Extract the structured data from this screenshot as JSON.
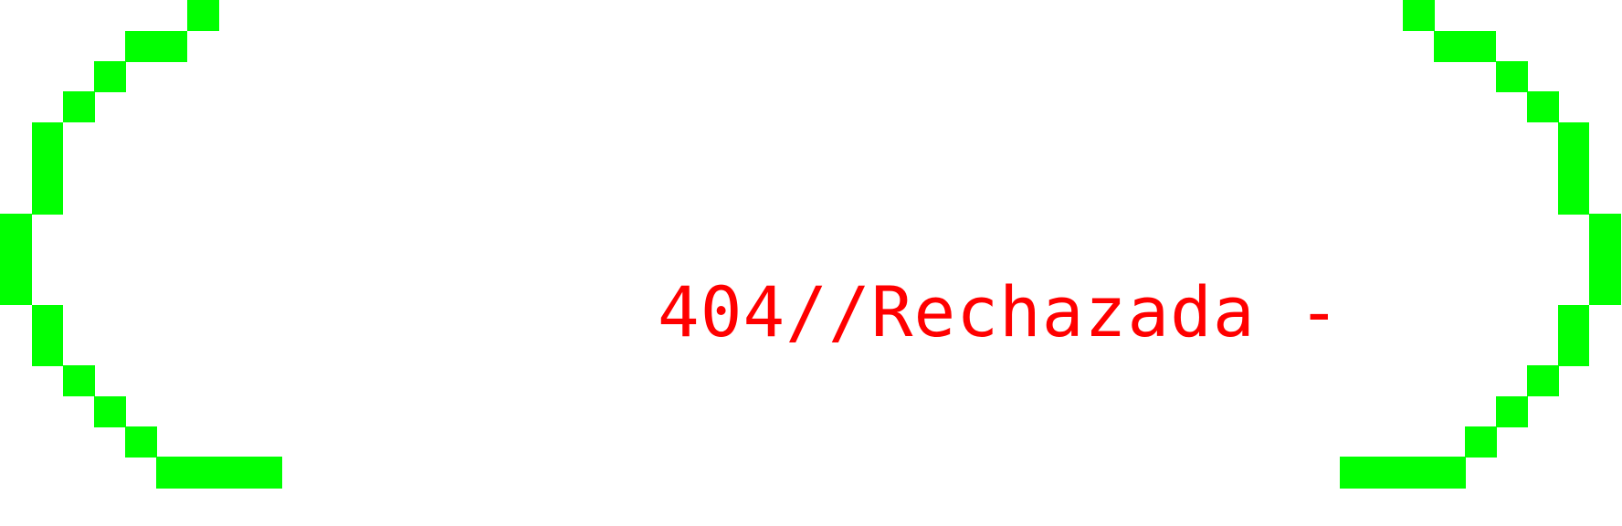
{
  "status_message": "404//Rechazada -",
  "colors": {
    "background": "#ffffff",
    "bracket": "#00ff00",
    "message": "#ff0000"
  },
  "decorations": {
    "left_bracket_icon": "pixel-parenthesis-left",
    "right_bracket_icon": "pixel-parenthesis-right"
  }
}
